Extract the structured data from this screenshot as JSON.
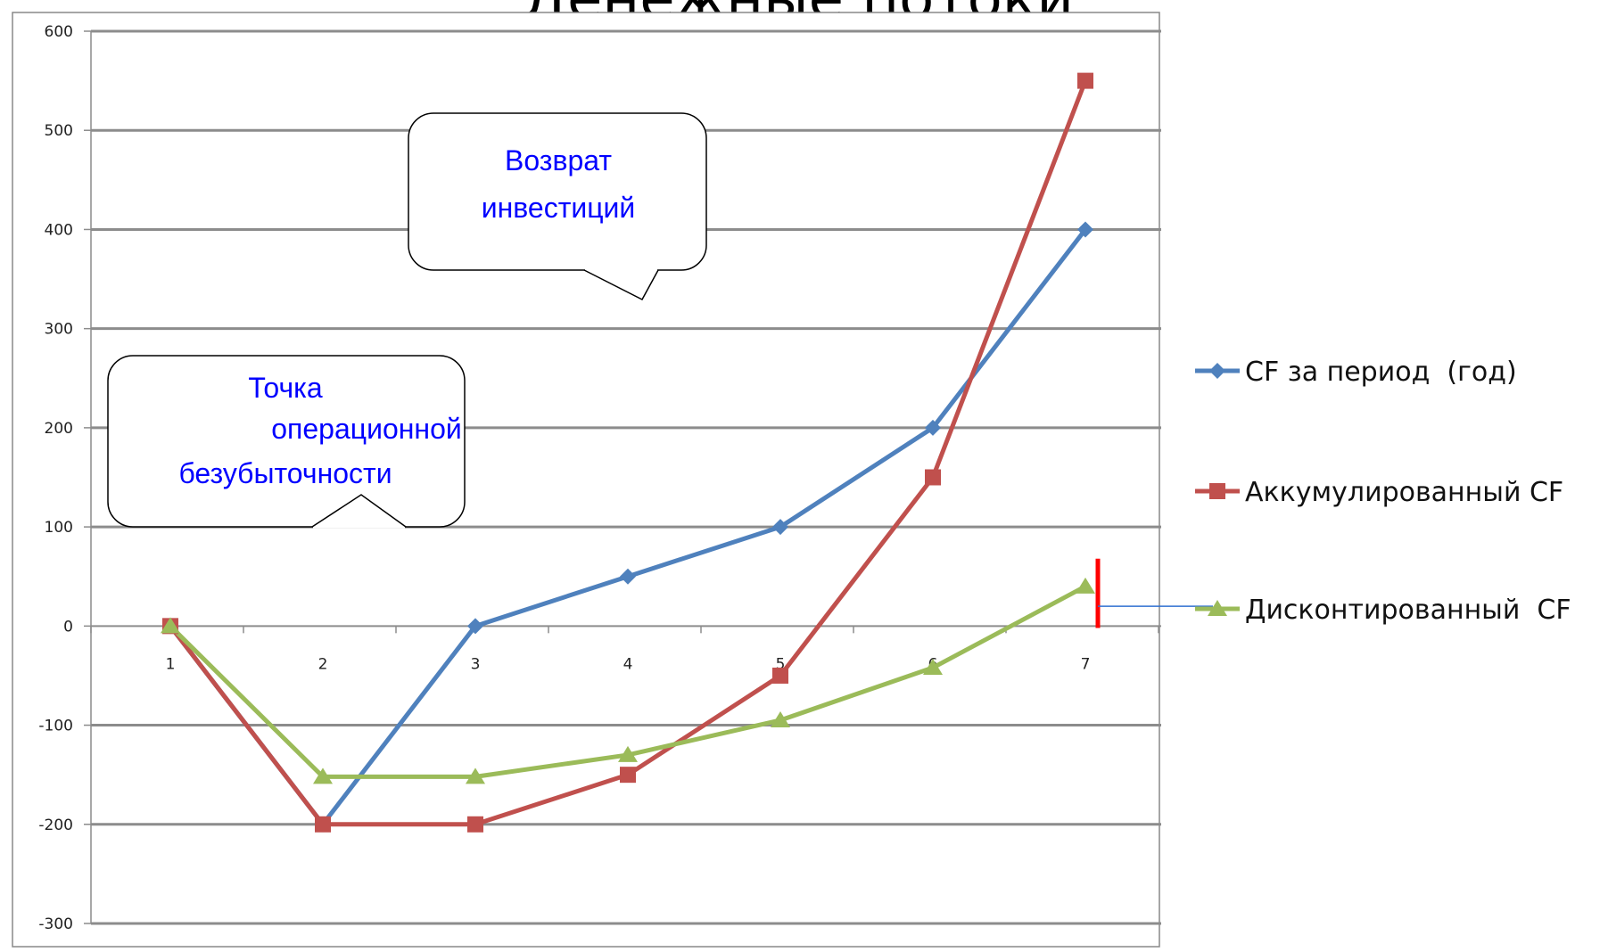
{
  "chart_data": {
    "type": "line",
    "title": "Денежные потоки",
    "x": [
      "1",
      "2",
      "3",
      "4",
      "5",
      "6",
      "7"
    ],
    "ylim": [
      -300,
      600
    ],
    "yticks": [
      600,
      500,
      400,
      300,
      200,
      100,
      0,
      -100,
      -200,
      -300
    ],
    "grid": true,
    "legend_position": "right",
    "series": [
      {
        "name": "CF за период  (год)",
        "marker": "diamond",
        "color": "#4f81bd",
        "values": [
          0,
          -200,
          0,
          50,
          100,
          200,
          400
        ]
      },
      {
        "name": "Аккумулированный CF",
        "marker": "square",
        "color": "#c0504d",
        "values": [
          0,
          -200,
          -200,
          -150,
          -50,
          150,
          550
        ]
      },
      {
        "name": "Дисконтированный  CF",
        "marker": "triangle",
        "color": "#9bbb59",
        "values": [
          0,
          -152,
          -152,
          -130,
          -95,
          -42,
          40
        ]
      }
    ],
    "annotations": [
      {
        "id": "investment-return",
        "lines": [
          "Возврат",
          "инвестиций"
        ]
      },
      {
        "id": "operational-breakeven",
        "lines": [
          "Точка",
          "операционной",
          "безубыточности"
        ]
      }
    ]
  }
}
